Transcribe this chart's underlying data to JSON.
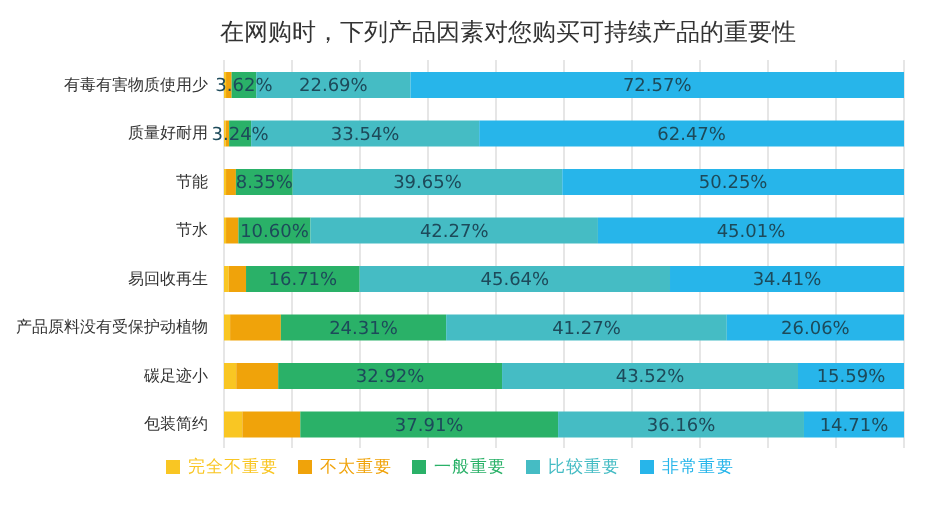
{
  "chart_data": {
    "type": "bar",
    "orientation": "horizontal",
    "stacked": true,
    "title": "在网购时，下列产品因素对您购买可持续产品的重要性",
    "categories": [
      "有毒有害物质使用少",
      "质量好耐用",
      "节能",
      "节水",
      "易回收再生",
      "产品原料没有受保护动植物",
      "碳足迹小",
      "包装简约"
    ],
    "tick_labels": "y",
    "grid": "x",
    "legend": "bottom",
    "series": [
      {
        "name": "完全不重要",
        "color": "#f9c623",
        "values": [
          0.3,
          0.25,
          0.3,
          0.3,
          0.7,
          0.9,
          1.8,
          2.7
        ]
      },
      {
        "name": "不太重要",
        "color": "#f0a30a",
        "values": [
          0.82,
          0.5,
          1.45,
          1.82,
          2.54,
          7.46,
          6.17,
          8.52
        ]
      },
      {
        "name": "一般重要",
        "color": "#2ab168",
        "values": [
          3.62,
          3.24,
          8.35,
          10.6,
          16.71,
          24.31,
          32.92,
          37.91
        ],
        "value_labels": [
          "3.62%",
          "3.24%",
          "8.35%",
          "10.60%",
          "16.71%",
          "24.31%",
          "32.92%",
          "37.91%"
        ]
      },
      {
        "name": "比较重要",
        "color": "#45bcc4",
        "values": [
          22.69,
          33.54,
          39.65,
          42.27,
          45.64,
          41.27,
          43.52,
          36.16
        ],
        "value_labels": [
          "22.69%",
          "33.54%",
          "39.65%",
          "42.27%",
          "45.64%",
          "41.27%",
          "43.52%",
          "36.16%"
        ]
      },
      {
        "name": "非常重要",
        "color": "#27b5ea",
        "values": [
          72.57,
          62.47,
          50.25,
          45.01,
          34.41,
          26.06,
          15.59,
          14.71
        ],
        "value_labels": [
          "72.57%",
          "62.47%",
          "50.25%",
          "45.01%",
          "34.41%",
          "26.06%",
          "15.59%",
          "14.71%"
        ]
      }
    ]
  }
}
